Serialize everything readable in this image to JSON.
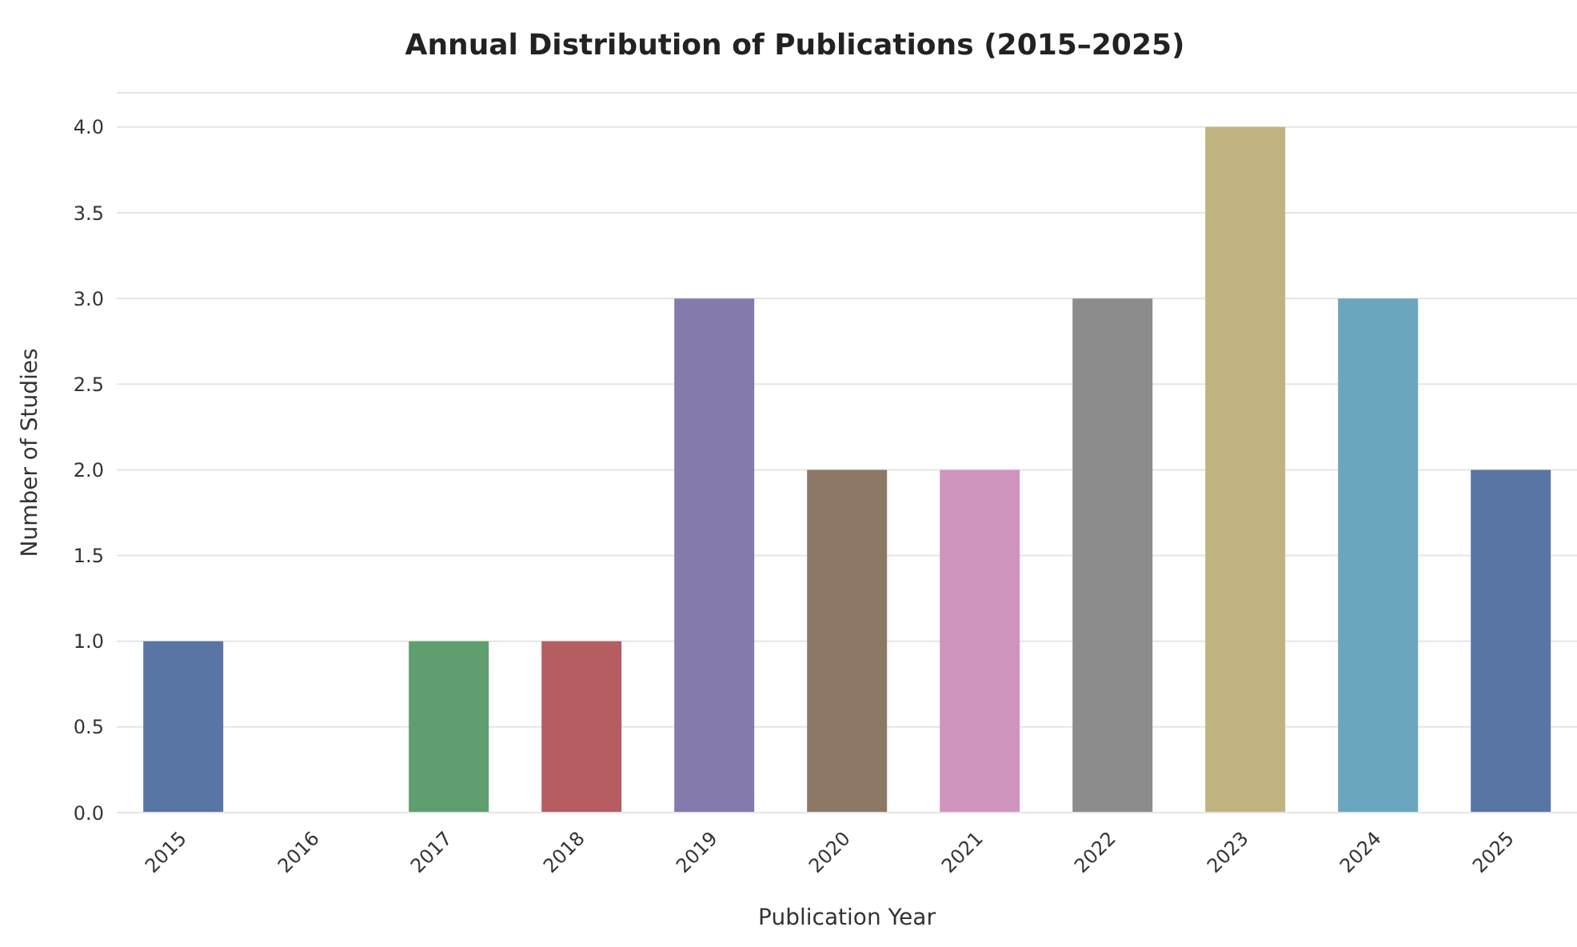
{
  "chart_data": {
    "type": "bar",
    "title": "Annual Distribution of Publications (2015–2025)",
    "xlabel": "Publication Year",
    "ylabel": "Number of Studies",
    "categories": [
      "2015",
      "2016",
      "2017",
      "2018",
      "2019",
      "2020",
      "2021",
      "2022",
      "2023",
      "2024",
      "2025"
    ],
    "values": [
      1,
      0,
      1,
      1,
      3,
      2,
      2,
      3,
      4,
      3,
      2
    ],
    "colors": [
      "#5975a4",
      "#cc8963",
      "#5f9e6e",
      "#b55d60",
      "#857aab",
      "#8d7866",
      "#d095bf",
      "#8c8c8c",
      "#c1b37f",
      "#6ca6be",
      "#5975a4"
    ],
    "ylim": [
      0,
      4.2
    ],
    "yticks": [
      {
        "value": 0,
        "label": "0.0"
      },
      {
        "value": 0.5,
        "label": "0.5"
      },
      {
        "value": 1,
        "label": "1.0"
      },
      {
        "value": 1.5,
        "label": "1.5"
      },
      {
        "value": 2,
        "label": "2.0"
      },
      {
        "value": 2.5,
        "label": "2.5"
      },
      {
        "value": 3,
        "label": "3.0"
      },
      {
        "value": 3.5,
        "label": "3.5"
      },
      {
        "value": 4,
        "label": "4.0"
      }
    ],
    "grid": "y"
  }
}
